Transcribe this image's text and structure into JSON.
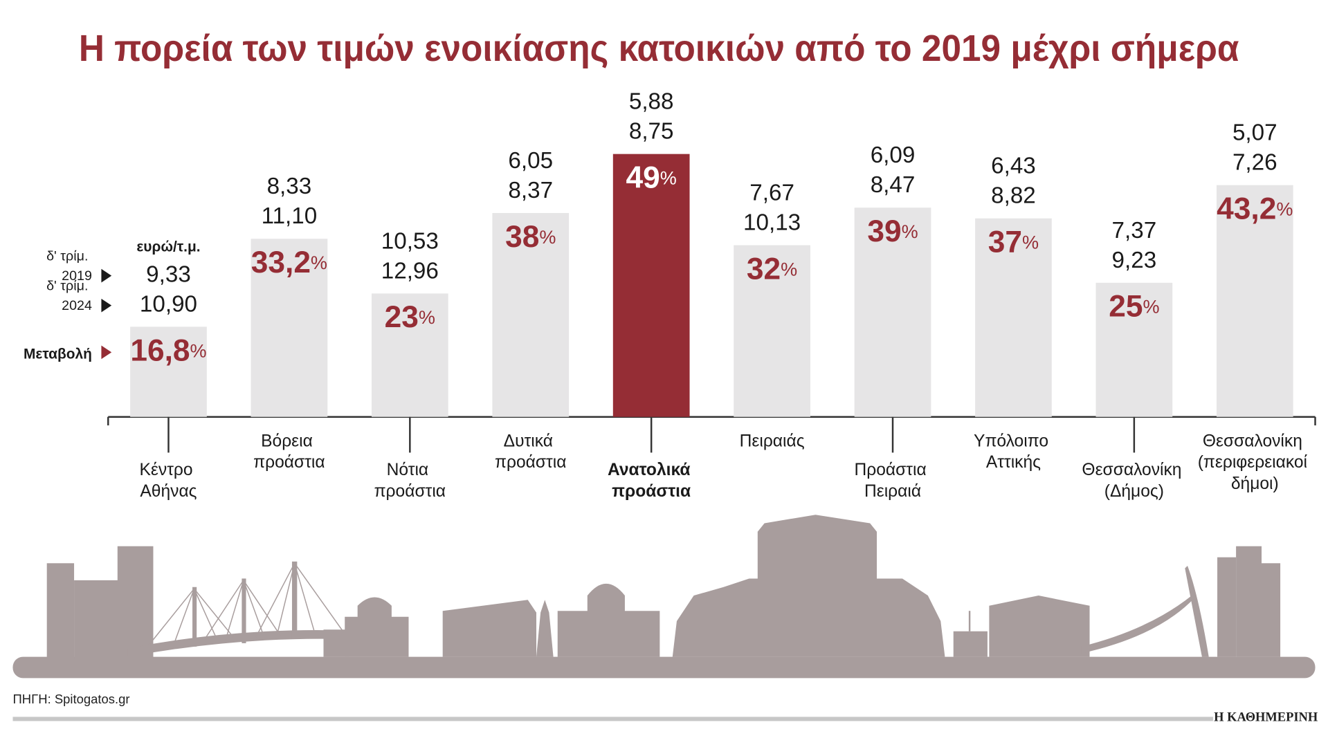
{
  "chart_data": {
    "type": "bar",
    "title": "Η πορεία των τιμών ενοικίασης κατοικιών από το 2019 μέχρι σήμερα",
    "unit": "ευρώ/τ.μ.",
    "categories": [
      "Κέντρο Αθήνας",
      "Βόρεια προάστια",
      "Νότια προάστια",
      "Δυτικά προάστια",
      "Ανατολικά προάστια",
      "Πειραιάς",
      "Προάστια Πειραιά",
      "Υπόλοιπο Αττικής",
      "Θεσσαλονίκη (Δήμος)",
      "Θεσσαλονίκη (περιφερειακοί δήμοι)"
    ],
    "series": [
      {
        "name": "δ' τρίμ. 2019",
        "values": [
          9.33,
          8.33,
          10.53,
          6.05,
          5.88,
          7.67,
          6.09,
          6.43,
          7.37,
          5.07
        ],
        "value_labels": [
          "9,33",
          "8,33",
          "10,53",
          "6,05",
          "5,88",
          "7,67",
          "6,09",
          "6,43",
          "7,37",
          "5,07"
        ]
      },
      {
        "name": "δ' τρίμ. 2024",
        "values": [
          10.9,
          11.1,
          12.96,
          8.37,
          8.75,
          10.13,
          8.47,
          8.82,
          9.23,
          7.26
        ],
        "value_labels": [
          "10,90",
          "11,10",
          "12,96",
          "8,37",
          "8,75",
          "10,13",
          "8,47",
          "8,82",
          "9,23",
          "7,26"
        ]
      },
      {
        "name": "Μεταβολή",
        "color": "#e6e5e6",
        "highlight_color": "#952d35",
        "values": [
          16.8,
          33.2,
          23,
          38,
          49,
          32,
          39,
          37,
          25,
          43.2
        ],
        "value_labels": [
          "16,8%",
          "33,2%",
          "23%",
          "38%",
          "49%",
          "32%",
          "39%",
          "37%",
          "25%",
          "43,2%"
        ]
      }
    ],
    "highlight": 4,
    "source": "ΠΗΓΗ: Spitogatos.gr",
    "publisher": "Η ΚΑΘΗΜΕΡΙΝΗ"
  }
}
